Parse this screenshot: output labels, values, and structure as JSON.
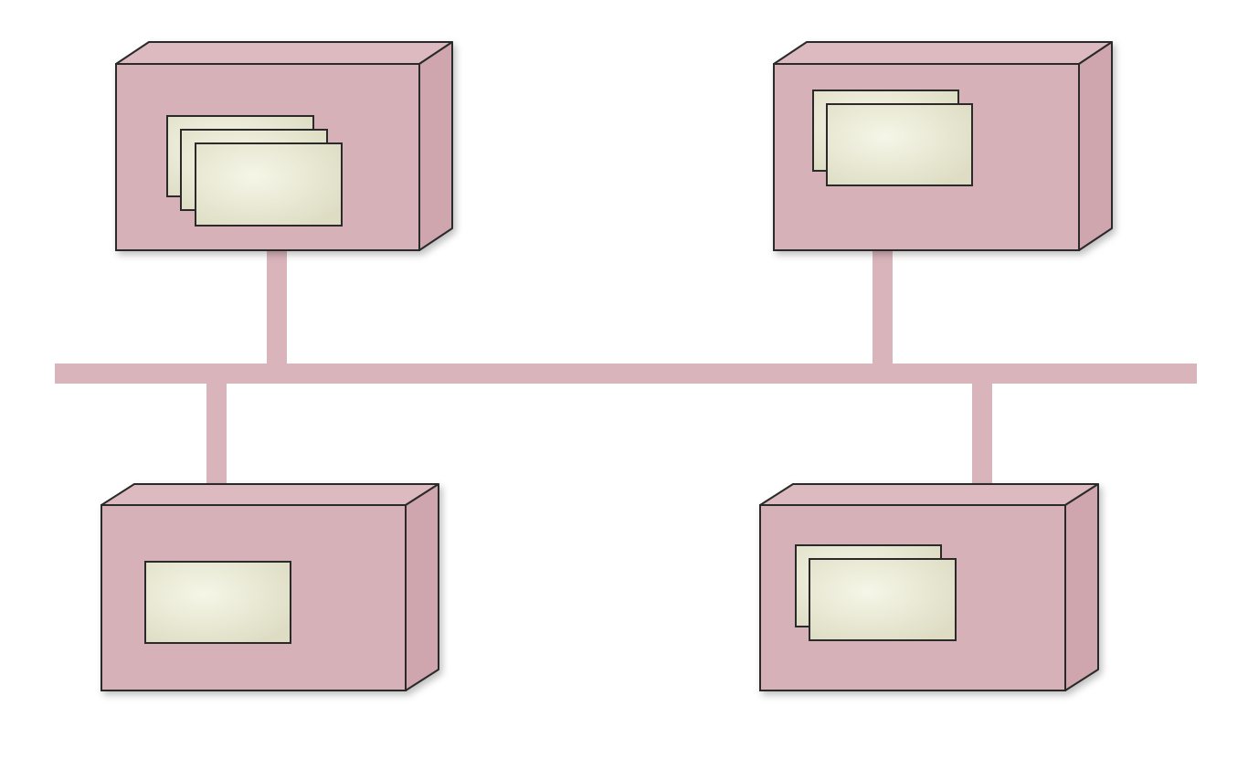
{
  "diagram": {
    "kind": "deployment-network",
    "colors": {
      "background": "#ffffff",
      "node_front": "#d7b1b8",
      "node_top": "#dcbac0",
      "node_side": "#cfa6ae",
      "outline": "#2a2a2a",
      "bus": "#dab4bb",
      "artifact_fill": "#e6e6cf",
      "artifact_highlight": "#f4f4e4"
    },
    "bus": {
      "label": ""
    },
    "nodes": [
      {
        "id": "node-top-left",
        "artifact_count": 3
      },
      {
        "id": "node-top-right",
        "artifact_count": 2
      },
      {
        "id": "node-bottom-left",
        "artifact_count": 1
      },
      {
        "id": "node-bottom-right",
        "artifact_count": 2
      }
    ]
  }
}
